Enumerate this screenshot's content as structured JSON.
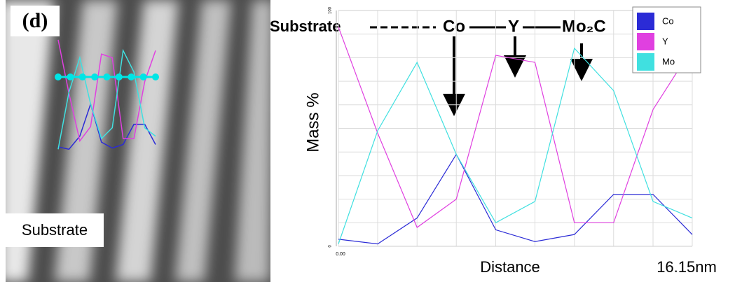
{
  "image_panel": {
    "label": "(d)",
    "caption": "Substrate"
  },
  "chart_data": {
    "type": "line",
    "ylabel": "Mass %",
    "xlabel": "Distance",
    "annotations": [
      "Substrate",
      "Co",
      "Y",
      "Mo₂C"
    ],
    "x": [
      0,
      1.79,
      3.59,
      5.38,
      7.18,
      8.97,
      10.77,
      12.56,
      14.36,
      16.15
    ],
    "xlim": [
      0,
      16.15
    ],
    "xticks": [
      {
        "value": 0,
        "label": "0.00"
      },
      {
        "value": 16.15,
        "label": "16.15nm"
      }
    ],
    "ylim": [
      0,
      100
    ],
    "yticks": [
      0,
      100
    ],
    "grid": true,
    "legend": "top-right",
    "series": [
      {
        "name": "Co",
        "color": "#2b2bd6",
        "values": [
          3,
          1,
          12,
          39,
          7,
          2,
          5,
          22,
          22,
          5
        ]
      },
      {
        "name": "Y",
        "color": "#e040e0",
        "values": [
          93,
          48,
          8,
          20,
          81,
          78,
          10,
          10,
          58,
          84
        ]
      },
      {
        "name": "Mo",
        "color": "#40e0e0",
        "values": [
          1,
          49,
          78,
          39,
          10,
          19,
          84,
          66,
          19,
          12
        ]
      }
    ]
  }
}
